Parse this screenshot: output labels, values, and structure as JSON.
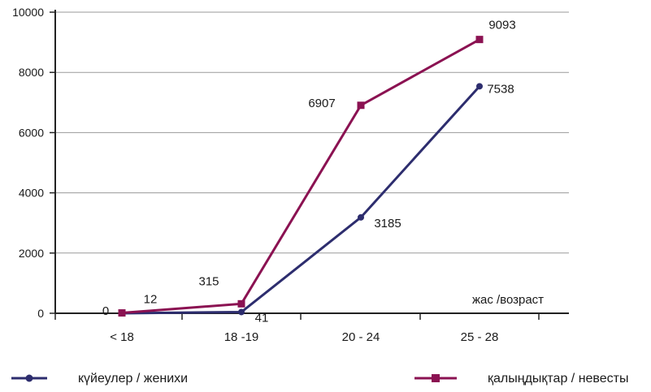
{
  "chart_data": {
    "type": "line",
    "categories": [
      "< 18",
      "18    -19",
      "20    - 24",
      "25    - 28"
    ],
    "series": [
      {
        "name": "күйеулер / женихи",
        "values": [
          0,
          41,
          3185,
          7538
        ],
        "labels": [
          "0",
          "41",
          "3185",
          "7538"
        ],
        "color": "#2d2d6e",
        "marker": "circle"
      },
      {
        "name": "қалыңдықтар / невесты",
        "values": [
          12,
          315,
          6907,
          9093
        ],
        "labels": [
          "12",
          "315",
          "6907",
          "9093"
        ],
        "color": "#8b1252",
        "marker": "square"
      }
    ],
    "y_ticks": [
      "0",
      "2000",
      "4000",
      "6000",
      "8000",
      "10000"
    ],
    "ylim": [
      0,
      10000
    ],
    "xlabel": "жас /возраст",
    "grid": true,
    "legend": "bottom"
  }
}
